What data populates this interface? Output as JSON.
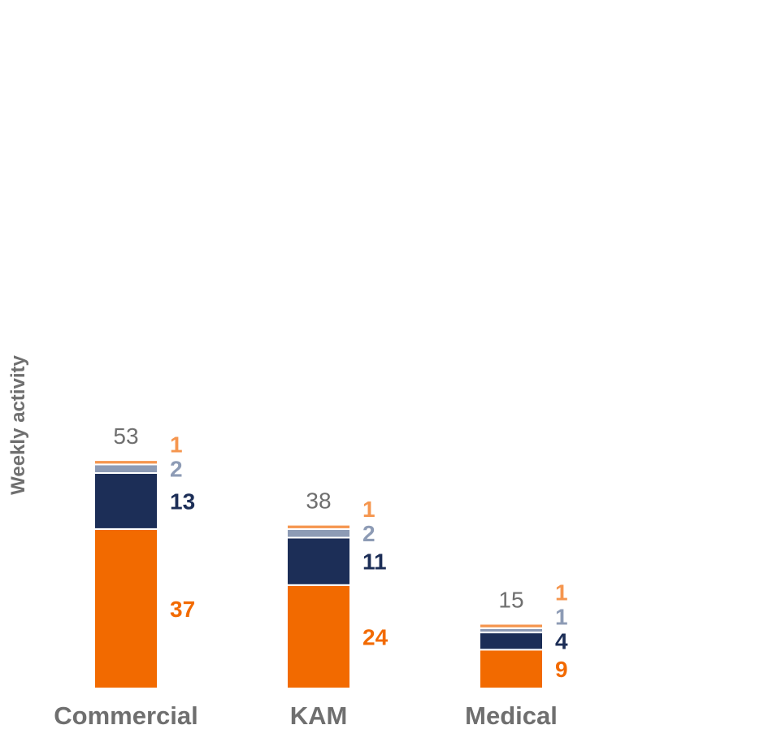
{
  "chart_data": {
    "type": "bar",
    "stacked": true,
    "title": "",
    "xlabel": "",
    "ylabel": "Weekly activity",
    "ylim": [
      0,
      53
    ],
    "categories": [
      "Commercial",
      "KAM",
      "Medical"
    ],
    "series": [
      {
        "values": [
          37,
          24,
          9
        ],
        "color": "#f26a00"
      },
      {
        "values": [
          13,
          11,
          4
        ],
        "color": "#1c2e57"
      },
      {
        "values": [
          2,
          2,
          1
        ],
        "color": "#8d9bb5"
      },
      {
        "values": [
          1,
          1,
          1
        ],
        "color": "#f5964f"
      }
    ],
    "totals": [
      53,
      38,
      15
    ],
    "legend": "none",
    "grid": false
  }
}
